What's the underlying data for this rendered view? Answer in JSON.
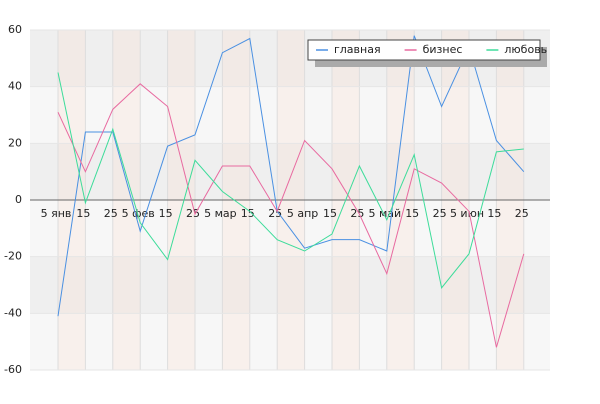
{
  "chart_data": {
    "type": "line",
    "categories": [
      "5 янв",
      "15",
      "25",
      "5 фев",
      "15",
      "25",
      "5 мар",
      "15",
      "25",
      "5 апр",
      "15",
      "25",
      "5 май",
      "15",
      "25",
      "5 июн",
      "15",
      "25"
    ],
    "series": [
      {
        "name": "главная",
        "color": "#4a90e2",
        "values": [
          -41,
          24,
          24,
          -11,
          19,
          23,
          52,
          57,
          -4,
          -17,
          -14,
          -14,
          -18,
          58,
          33,
          54,
          21,
          10
        ]
      },
      {
        "name": "бизнес",
        "color": "#e86aa0",
        "values": [
          31,
          10,
          32,
          41,
          33,
          -5,
          12,
          12,
          -4,
          21,
          11,
          -5,
          -26,
          11,
          6,
          -4,
          -52,
          -19
        ]
      },
      {
        "name": "любовь",
        "color": "#3ddc9a",
        "values": [
          45,
          -1,
          25,
          -8,
          -21,
          14,
          3,
          -4,
          -14,
          -18,
          -12,
          12,
          -7,
          16,
          -31,
          -19,
          17,
          18
        ]
      }
    ],
    "ylim": [
      -60,
      60
    ],
    "yticks": [
      -60,
      -40,
      -20,
      0,
      20,
      40,
      60
    ],
    "grid": true,
    "legend": "top-right"
  }
}
